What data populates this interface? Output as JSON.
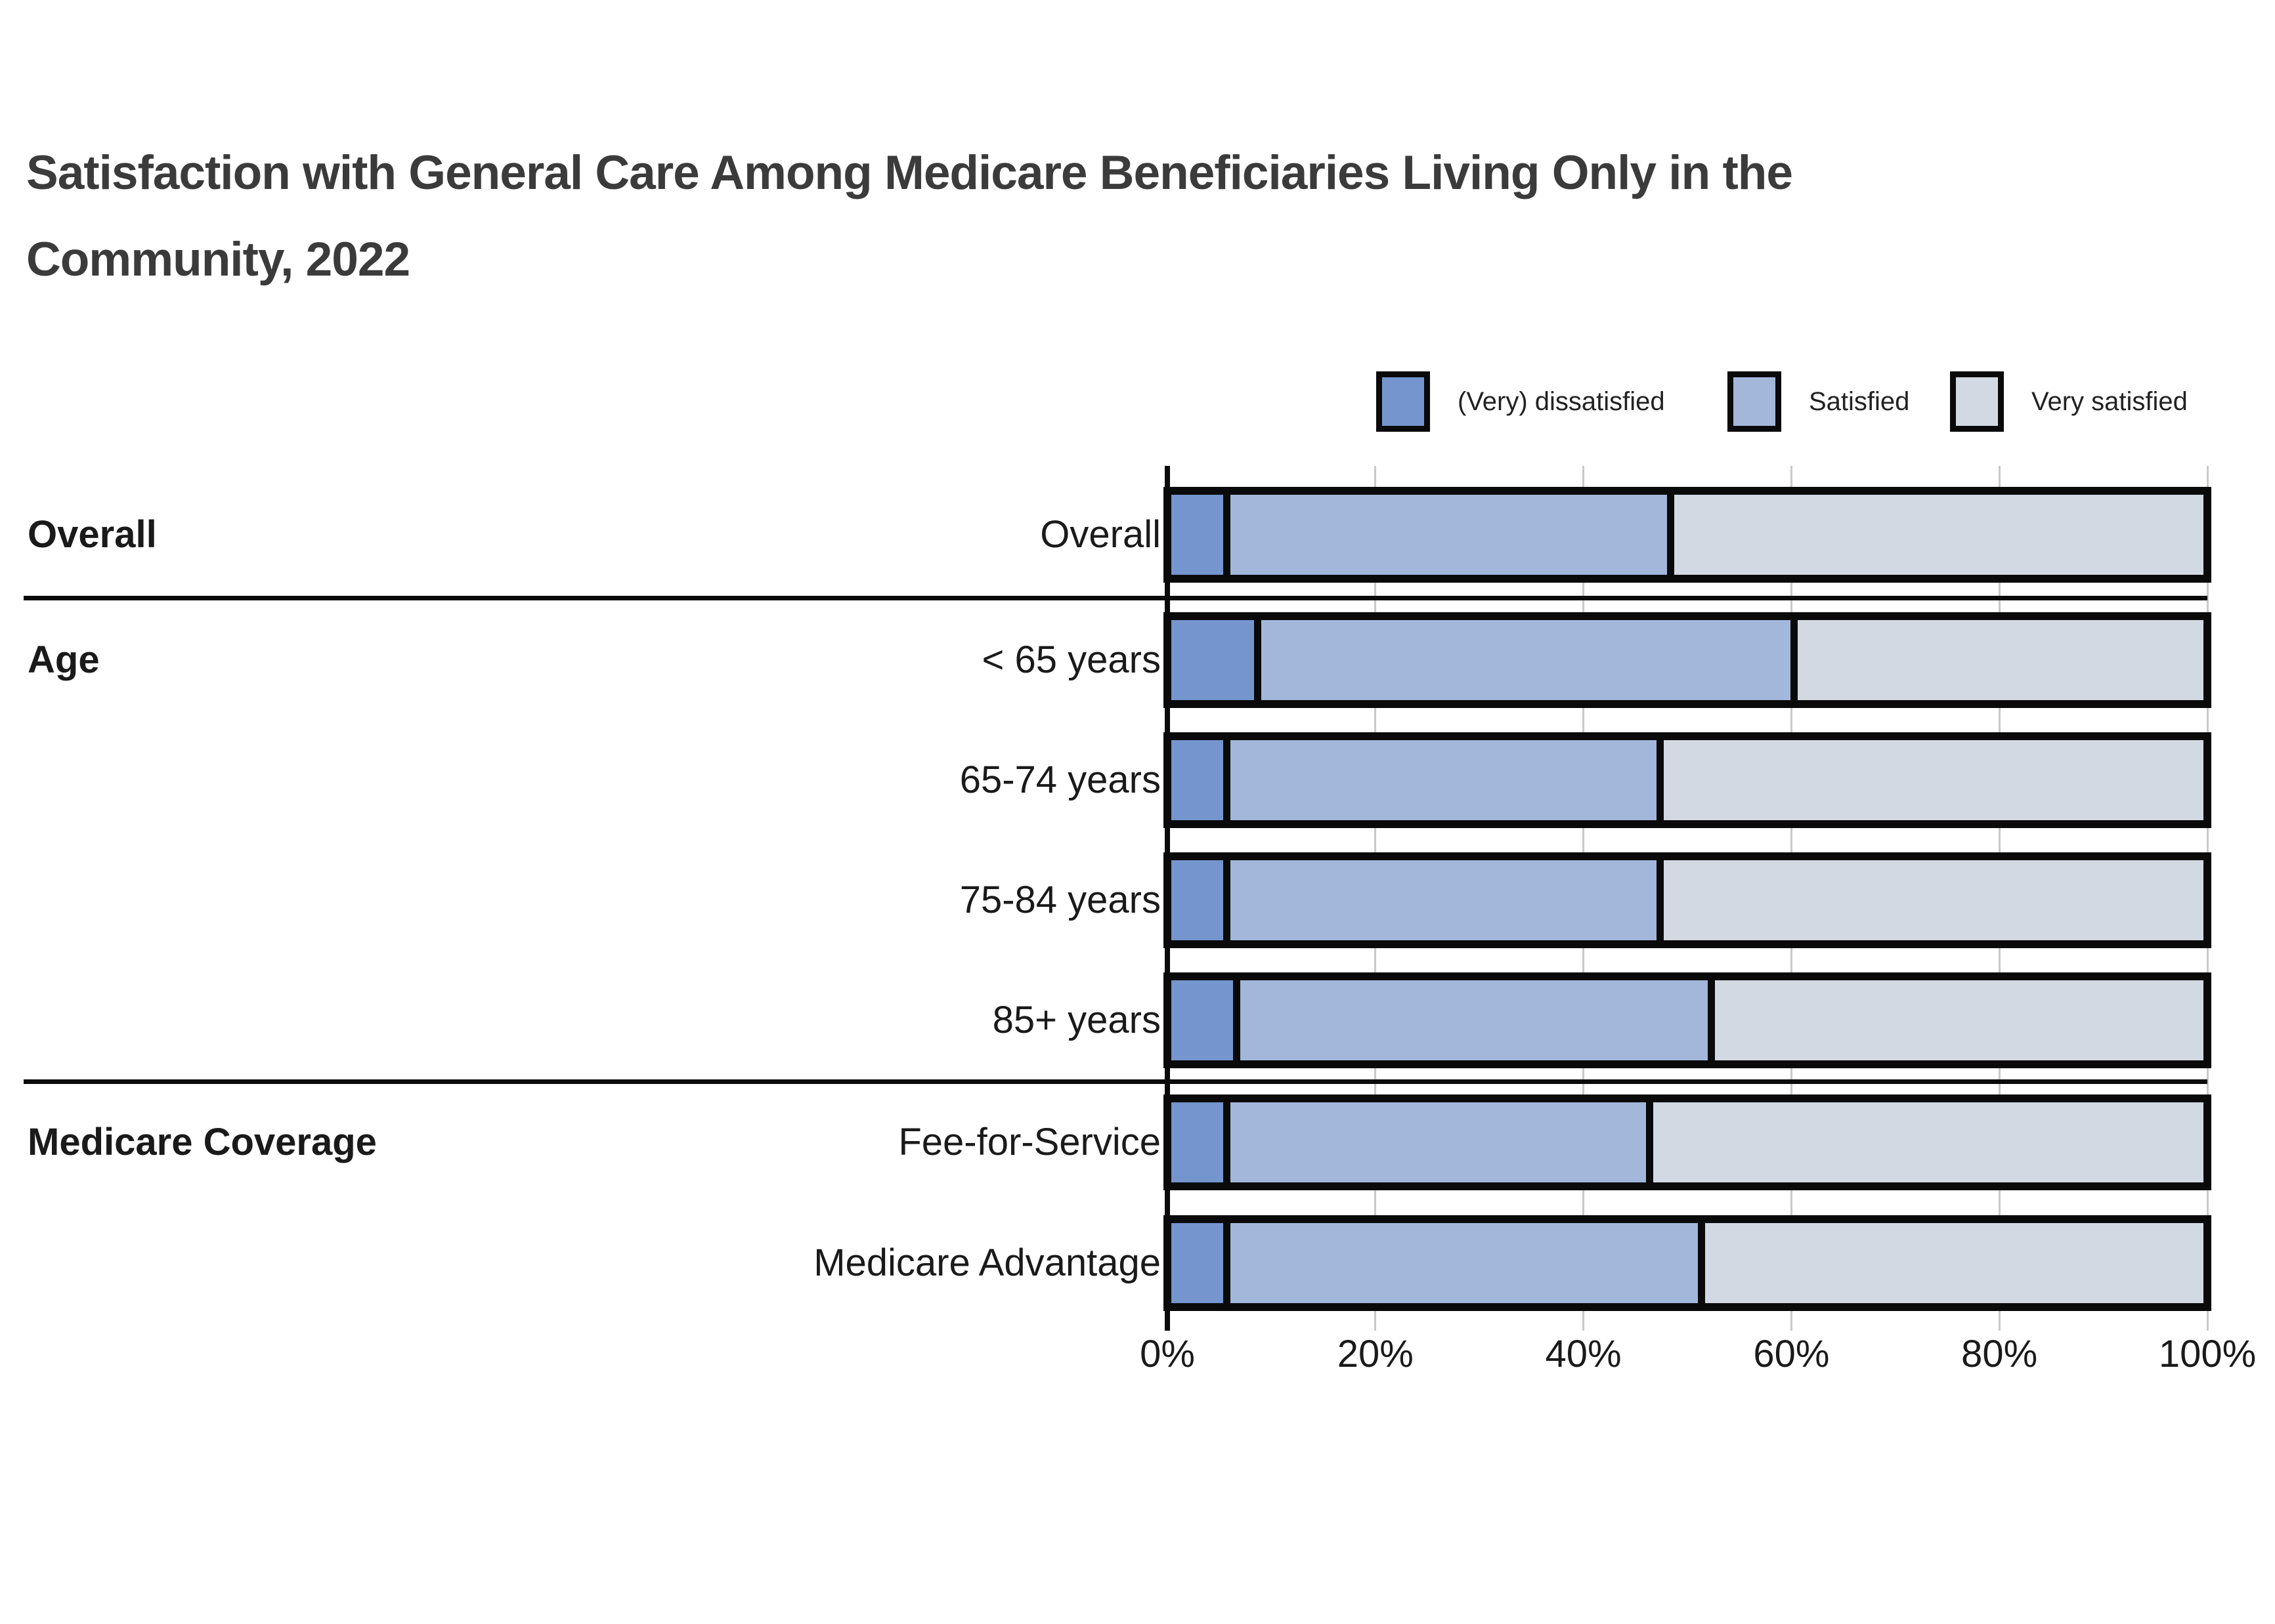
{
  "title": "Satisfaction with General Care Among Medicare Beneficiaries Living Only in the Community, 2022",
  "title_lines": [
    "Satisfaction with General Care Among Medicare Beneficiaries Living Only in the",
    "Community, 2022"
  ],
  "legend": {
    "items": [
      {
        "label": "(Very) dissatisfied",
        "color": "#7495ce"
      },
      {
        "label": "Satisfied",
        "color": "#a3b7da"
      },
      {
        "label": "Very satisfied",
        "color": "#d3d9e3"
      }
    ]
  },
  "x_axis": {
    "tick_labels": [
      "0%",
      "20%",
      "40%",
      "60%",
      "80%",
      "100%"
    ],
    "min": 0,
    "max": 100
  },
  "chart_data": {
    "type": "bar",
    "orientation": "horizontal",
    "stacked": true,
    "title": "Satisfaction with General Care Among Medicare Beneficiaries Living Only in the Community, 2022",
    "categories": [
      "Overall",
      "< 65 years",
      "65-74 years",
      "75-84 years",
      "85+ years",
      "Fee-for-Service",
      "Medicare Advantage"
    ],
    "groups": [
      {
        "label": "Overall",
        "rows": [
          "Overall"
        ]
      },
      {
        "label": "Age",
        "rows": [
          "< 65 years",
          "65-74 years",
          "75-84 years",
          "85+ years"
        ]
      },
      {
        "label": "Medicare Coverage",
        "rows": [
          "Fee-for-Service",
          "Medicare Advantage"
        ]
      }
    ],
    "series": [
      {
        "name": "(Very) dissatisfied",
        "color": "#7495ce",
        "values": [
          5,
          8,
          5,
          5,
          6,
          5,
          5
        ]
      },
      {
        "name": "Satisfied",
        "color": "#a3b7da",
        "values": [
          43,
          52,
          42,
          42,
          46,
          41,
          46
        ]
      },
      {
        "name": "Very satisfied",
        "color": "#d3d9e3",
        "values": [
          52,
          40,
          53,
          53,
          48,
          54,
          49
        ]
      }
    ],
    "xlim": [
      0,
      100
    ],
    "x_tick_labels": [
      "0%",
      "20%",
      "40%",
      "60%",
      "80%",
      "100%"
    ],
    "legend_position": "top-right",
    "grid": "vertical"
  },
  "styles": {
    "title_color": "#3b3b3b",
    "label_color": "#1a1a1a",
    "grid_color": "#c9c9c9",
    "bar_border_color": "#0a0a0a",
    "background": "#ffffff"
  }
}
